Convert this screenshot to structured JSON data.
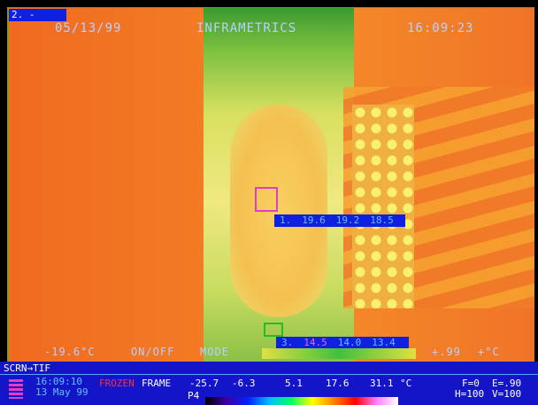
{
  "overlay": {
    "tag": "2. -",
    "date": "05/13/99",
    "brand": "INFRAMETRICS",
    "time": "16:09:23",
    "spots": [
      {
        "id": "1.",
        "readings": [
          "19.6",
          "19.2",
          "18.5"
        ]
      },
      {
        "id": "3.",
        "readings": [
          "14.5",
          "14.0",
          "13.4"
        ]
      }
    ],
    "bottom_row": [
      "-19.6°C",
      "ON/OFF",
      "MODE",
      "+.99",
      "+°C"
    ]
  },
  "status_bar": {
    "mode": "SCRN→TIF",
    "clock": "16:09:10",
    "day": "13 May 99",
    "state": "FROZEN",
    "frame": "FRAME",
    "scale": [
      "-25.7",
      "-6.3",
      "5.1",
      "17.6",
      "31.1",
      "°C"
    ],
    "palette": "P4",
    "emissivity": [
      "F=0",
      "E=.90"
    ],
    "gain": [
      "H=100",
      "V=100"
    ]
  }
}
